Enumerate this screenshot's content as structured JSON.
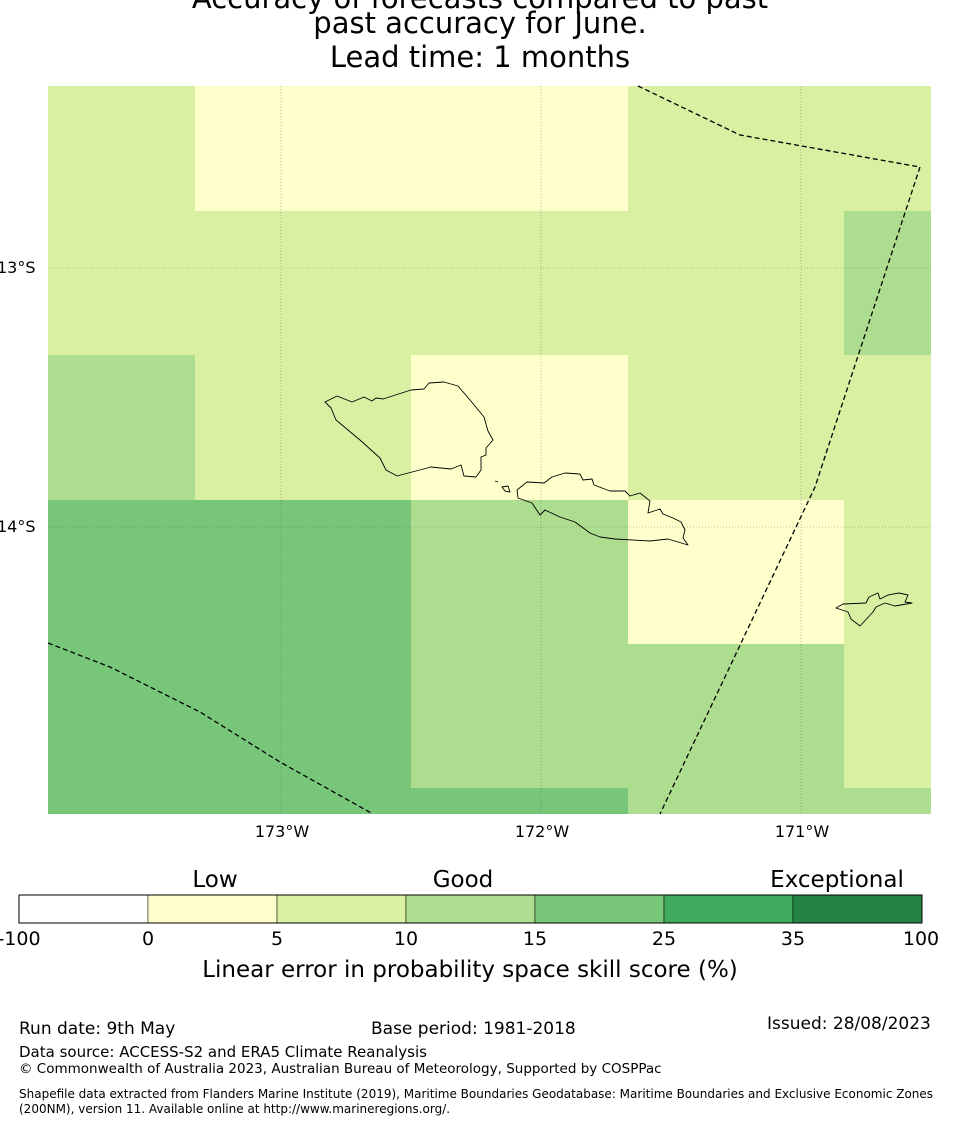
{
  "title": {
    "line1": "Accuracy of forecasts compared to past",
    "line2": "past accuracy for June.",
    "line3": "Lead time: 1 months"
  },
  "map": {
    "lat_labels": [
      "13°S",
      "14°S"
    ],
    "lon_labels": [
      "173°W",
      "172°W",
      "171°W"
    ],
    "grid_colors": [
      "#ffffcc",
      "#d9f0a3",
      "#addd8e",
      "#78c679"
    ]
  },
  "colorbar": {
    "categories": [
      "Low",
      "Good",
      "Exceptional"
    ],
    "ticks": [
      "-100",
      "0",
      "5",
      "10",
      "15",
      "25",
      "35",
      "100"
    ],
    "colors": [
      "#ffffff",
      "#ffffcc",
      "#d9f0a3",
      "#addd8e",
      "#78c679",
      "#41ab5d",
      "#238443"
    ],
    "label": "Linear error in probability space skill score (%)"
  },
  "footer": {
    "run_date": "Run date: 9th May",
    "base_period": "Base period: 1981-2018",
    "issued": "Issued: 28/08/2023",
    "data_source": "Data source: ACCESS-S2 and ERA5 Climate Reanalysis",
    "copyright": "© Commonwealth of Australia 2023, Australian Bureau of Meteorology, Supported by COSPPac",
    "shapefile_line1": "Shapefile data extracted from Flanders Marine Institute (2019), Maritime Boundaries Geodatabase: Maritime Boundaries and Exclusive Economic Zones",
    "shapefile_line2": "(200NM), version 11. Available online at http://www.marineregions.org/."
  }
}
